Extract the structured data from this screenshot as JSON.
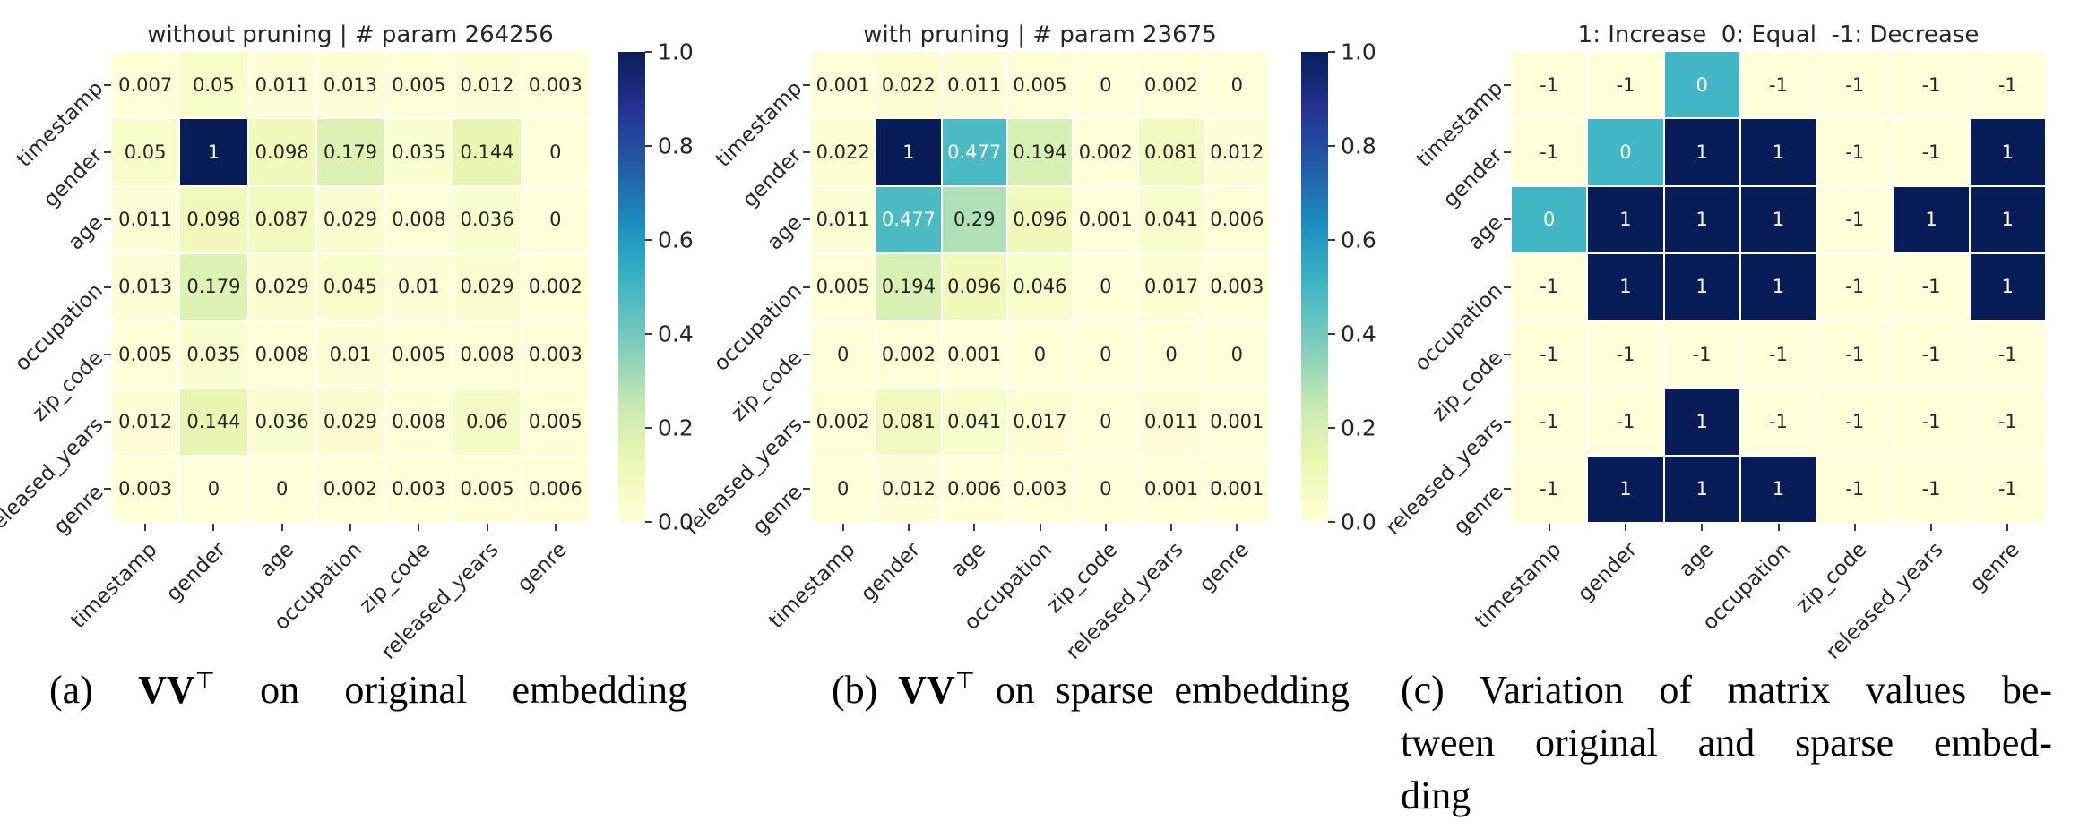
{
  "chart_data": [
    {
      "type": "heatmap",
      "title": "without pruning | # param 264256",
      "labels": [
        "timestamp",
        "gender",
        "age",
        "occupation",
        "zip_code",
        "released_years",
        "genre"
      ],
      "values": [
        [
          0.007,
          0.05,
          0.011,
          0.013,
          0.005,
          0.012,
          0.003
        ],
        [
          0.05,
          1,
          0.098,
          0.179,
          0.035,
          0.144,
          0
        ],
        [
          0.011,
          0.098,
          0.087,
          0.029,
          0.008,
          0.036,
          0
        ],
        [
          0.013,
          0.179,
          0.029,
          0.045,
          0.01,
          0.029,
          0.002
        ],
        [
          0.005,
          0.035,
          0.008,
          0.01,
          0.005,
          0.008,
          0.003
        ],
        [
          0.012,
          0.144,
          0.036,
          0.029,
          0.008,
          0.06,
          0.005
        ],
        [
          0.003,
          0,
          0,
          0.002,
          0.003,
          0.005,
          0.006
        ]
      ],
      "vmin": 0,
      "vmax": 1,
      "colormap": "YlGnBu",
      "colorbar": {
        "ticks": [
          "1.0",
          "0.8",
          "0.6",
          "0.4",
          "0.2",
          "0.0"
        ]
      }
    },
    {
      "type": "heatmap",
      "title": "with pruning | # param 23675",
      "labels": [
        "timestamp",
        "gender",
        "age",
        "occupation",
        "zip_code",
        "released_years",
        "genre"
      ],
      "values": [
        [
          0.001,
          0.022,
          0.011,
          0.005,
          0,
          0.002,
          0
        ],
        [
          0.022,
          1,
          0.477,
          0.194,
          0.002,
          0.081,
          0.012
        ],
        [
          0.011,
          0.477,
          0.29,
          0.096,
          0.001,
          0.041,
          0.006
        ],
        [
          0.005,
          0.194,
          0.096,
          0.046,
          0,
          0.017,
          0.003
        ],
        [
          0,
          0.002,
          0.001,
          0,
          0,
          0,
          0
        ],
        [
          0.002,
          0.081,
          0.041,
          0.017,
          0,
          0.011,
          0.001
        ],
        [
          0,
          0.012,
          0.006,
          0.003,
          0,
          0.001,
          0.001
        ]
      ],
      "vmin": 0,
      "vmax": 1,
      "colormap": "YlGnBu",
      "colorbar": {
        "ticks": [
          "1.0",
          "0.8",
          "0.6",
          "0.4",
          "0.2",
          "0.0"
        ]
      }
    },
    {
      "type": "heatmap",
      "title": "1: Increase  0: Equal  -1: Decrease",
      "labels": [
        "timestamp",
        "gender",
        "age",
        "occupation",
        "zip_code",
        "released_years",
        "genre"
      ],
      "values": [
        [
          -1,
          -1,
          0,
          -1,
          -1,
          -1,
          -1
        ],
        [
          -1,
          0,
          1,
          1,
          -1,
          -1,
          1
        ],
        [
          0,
          1,
          1,
          1,
          -1,
          1,
          1
        ],
        [
          -1,
          1,
          1,
          1,
          -1,
          -1,
          1
        ],
        [
          -1,
          -1,
          -1,
          -1,
          -1,
          -1,
          -1
        ],
        [
          -1,
          -1,
          1,
          -1,
          -1,
          -1,
          -1
        ],
        [
          -1,
          1,
          1,
          1,
          -1,
          -1,
          -1
        ]
      ],
      "vmin": -1,
      "vmax": 1,
      "colormap": "YlGnBu",
      "colorbar": null
    }
  ],
  "captions": [
    {
      "label": "(a)",
      "formula": "VV",
      "sup": "⊤",
      "text": "on original embedding"
    },
    {
      "label": "(b)",
      "formula": "VV",
      "sup": "⊤",
      "text": "on sparse embedding"
    },
    {
      "lines": [
        "(c) Variation of matrix values be-",
        "tween original and sparse embed-",
        "ding"
      ]
    }
  ],
  "colors": {
    "colormap_stops": [
      [
        0,
        "#ffffd9"
      ],
      [
        0.125,
        "#edf8b1"
      ],
      [
        0.25,
        "#c7e9b4"
      ],
      [
        0.375,
        "#7fcdbb"
      ],
      [
        0.5,
        "#41b6c4"
      ],
      [
        0.625,
        "#1d91c0"
      ],
      [
        0.75,
        "#225ea8"
      ],
      [
        0.875,
        "#253494"
      ],
      [
        1,
        "#081d58"
      ]
    ],
    "annot_dark": "#262626",
    "annot_light": "#ffffff",
    "axis_text": "#262626",
    "background": "#ffffff"
  }
}
